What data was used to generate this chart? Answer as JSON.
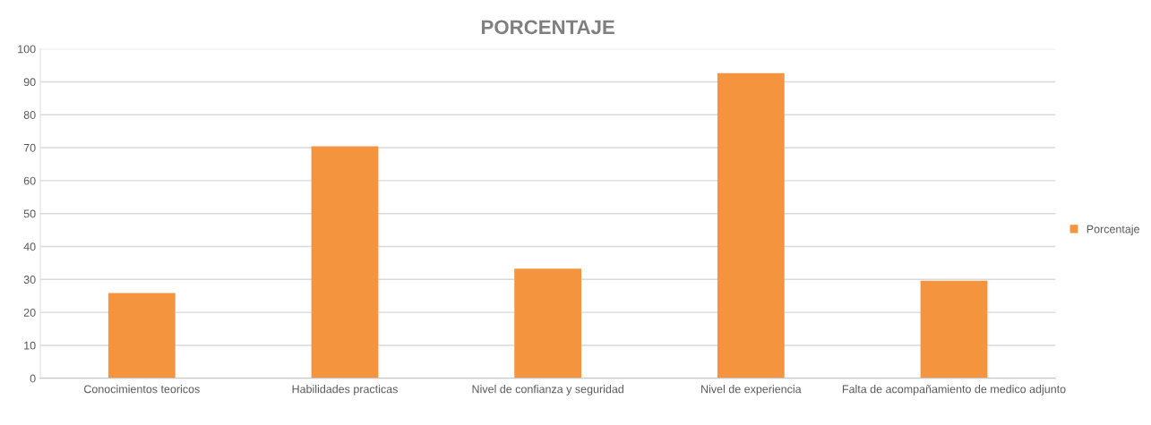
{
  "chart_data": {
    "type": "bar",
    "title": "PORCENTAJE",
    "categories": [
      "Conocimientos teoricos",
      "Habilidades practicas",
      "Nivel de confianza y seguridad",
      "Nivel de experiencia",
      "Falta de acompañamiento de medico adjunto"
    ],
    "series": [
      {
        "name": "Porcentaje",
        "color": "#f5943f",
        "values": [
          25.9,
          70.4,
          33.3,
          92.6,
          29.6
        ]
      }
    ],
    "ylim": [
      0,
      100
    ],
    "yticks": [
      0,
      10,
      20,
      30,
      40,
      50,
      60,
      70,
      80,
      90,
      100
    ],
    "grid": "y",
    "legend": "right"
  }
}
